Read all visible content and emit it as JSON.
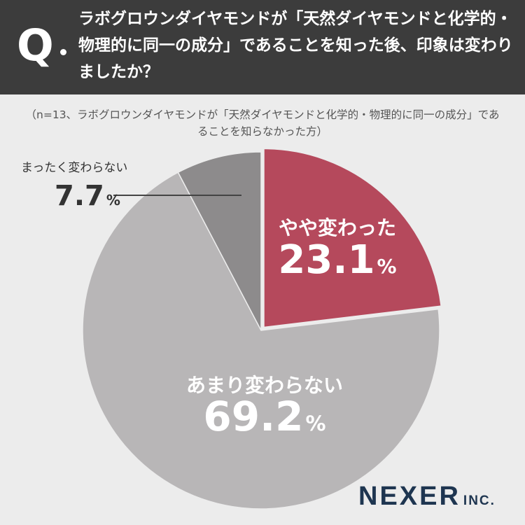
{
  "header": {
    "q_mark": "Q",
    "question": "ラボグロウンダイヤモンドが「天然ダイヤモンドと化学的・物理的に同一の成分」であることを知った後、印象は変わりましたか？"
  },
  "note": "（n=13、ラボグロウンダイヤモンドが「天然ダイヤモンドと化学的・物理的に同一の成分」であることを知らなかった方）",
  "logo": {
    "main": "NEXER",
    "sub": "INC."
  },
  "colors": {
    "header_bg": "#3c3c3c",
    "slice_changed_somewhat": "#b5495c",
    "slice_not_much": "#b8b6b7",
    "slice_not_at_all": "#8d8b8c",
    "background": "#ececec",
    "logo": "#1e3550"
  },
  "chart_data": {
    "type": "pie",
    "start_angle_deg": 0,
    "direction": "clockwise",
    "unit": "%",
    "slices": [
      {
        "label": "やや変わった",
        "value": 23.1,
        "display": "23.1",
        "color": "#b5495c",
        "exploded": true,
        "label_color": "#ffffff"
      },
      {
        "label": "あまり変わらない",
        "value": 69.2,
        "display": "69.2",
        "color": "#b8b6b7",
        "exploded": false,
        "label_color": "#ffffff"
      },
      {
        "label": "まったく変わらない",
        "value": 7.7,
        "display": "7.7",
        "color": "#8d8b8c",
        "exploded": false,
        "label_color": "#333333",
        "label_outside": true
      }
    ]
  }
}
